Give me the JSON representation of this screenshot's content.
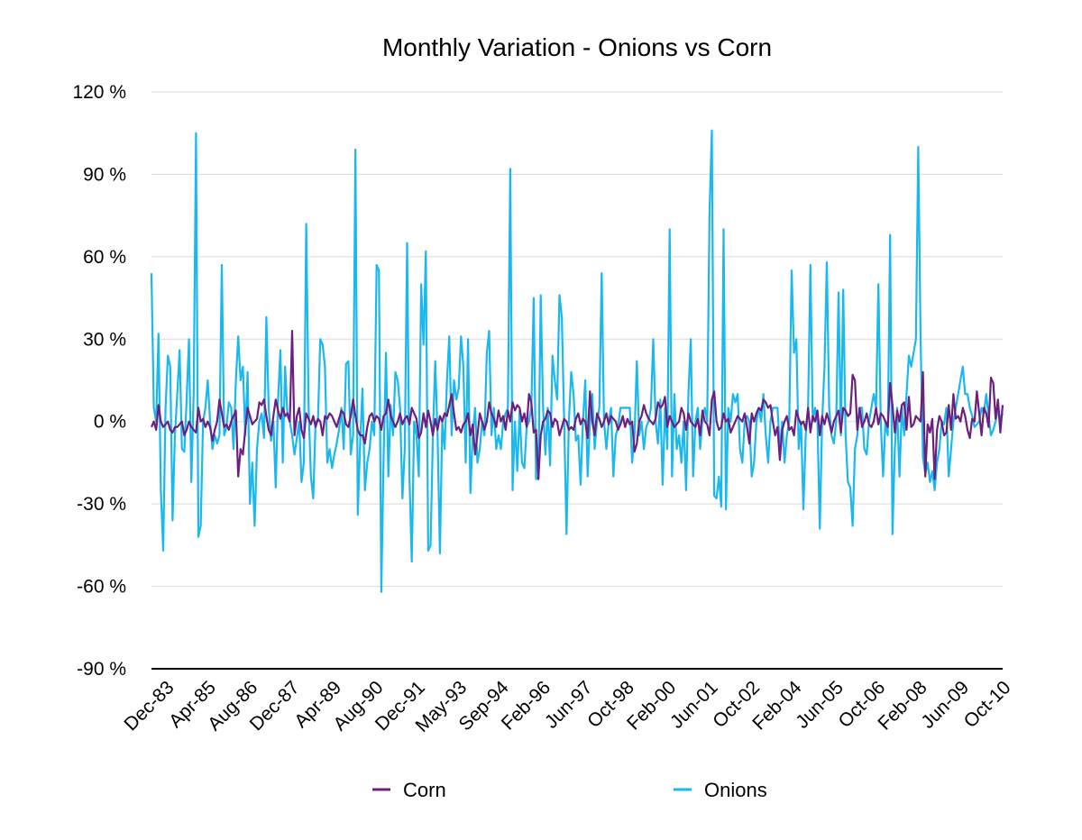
{
  "chart_data": {
    "type": "line",
    "title": "Monthly Variation - Onions vs Corn",
    "xlabel": "",
    "ylabel": "",
    "ylim": [
      -90,
      120
    ],
    "ytick_step": 30,
    "y_tick_labels": [
      "120 %",
      "90 %",
      "60 %",
      "30 %",
      "0 %",
      "-30 %",
      "-60 %",
      "-90 %"
    ],
    "x_tick_labels": [
      "Dec-83",
      "Apr-85",
      "Aug-86",
      "Dec-87",
      "Apr-89",
      "Aug-90",
      "Dec-91",
      "May-93",
      "Sep-94",
      "Feb-96",
      "Jun-97",
      "Oct-98",
      "Feb-00",
      "Jun-01",
      "Oct-02",
      "Feb-04",
      "Jun-05",
      "Oct-06",
      "Feb-08",
      "Jun-09",
      "Oct-10"
    ],
    "grid": true,
    "legend_position": "bottom",
    "series": [
      {
        "name": "Corn",
        "color": "#6b1f7f",
        "values": [
          -2,
          0,
          -3,
          6,
          0,
          -2,
          -1,
          0,
          -3,
          -4,
          -2,
          -2,
          -1,
          0,
          -5,
          -3,
          0,
          -2,
          -3,
          -4,
          5,
          0,
          1,
          -2,
          0,
          -2,
          -7,
          -3,
          0,
          8,
          3,
          -2,
          -1,
          -3,
          0,
          2,
          4,
          -20,
          -10,
          -12,
          -3,
          5,
          2,
          -1,
          0,
          1,
          7,
          6,
          8,
          2,
          -3,
          -5,
          2,
          8,
          4,
          1,
          5,
          2,
          3,
          0,
          33,
          -5,
          2,
          5,
          -3,
          -6,
          3,
          1,
          -1,
          2,
          -2,
          1,
          0,
          -5,
          2,
          1,
          3,
          2,
          0,
          -2,
          1,
          4,
          3,
          -1,
          -2,
          2,
          8,
          2,
          -3,
          -5,
          -5,
          -8,
          -2,
          2,
          3,
          0,
          2,
          1,
          -3,
          2,
          3,
          8,
          2,
          0,
          -2,
          0,
          3,
          -1,
          1,
          2,
          -1,
          5,
          3,
          1,
          -6,
          -4,
          3,
          -2,
          4,
          0,
          -5,
          1,
          -3,
          2,
          0,
          3,
          2,
          6,
          10,
          3,
          -3,
          -2,
          -4,
          -1,
          0,
          3,
          -5,
          -1,
          -12,
          -5,
          3,
          0,
          -3,
          0,
          7,
          3,
          1,
          -2,
          4,
          0,
          2,
          -3,
          4,
          0,
          7,
          4,
          6,
          5,
          0,
          3,
          -2,
          10,
          7,
          -4,
          -3,
          -21,
          -5,
          0,
          1,
          4,
          3,
          -2,
          1,
          0,
          -5,
          -2,
          1,
          0,
          -3,
          -2,
          -3,
          1,
          3,
          -1,
          1,
          0,
          -6,
          11,
          0,
          -5,
          3,
          1,
          -2,
          0,
          3,
          -1,
          2,
          1,
          0,
          -3,
          -1,
          2,
          -2,
          1,
          -1,
          0,
          -11,
          -8,
          0,
          2,
          6,
          3,
          1,
          0,
          -1,
          1,
          7,
          5,
          6,
          9,
          -2,
          2,
          0,
          -2,
          -1,
          0,
          5,
          3,
          -3,
          3,
          0,
          -1,
          -2,
          1,
          -5,
          4,
          0,
          -1,
          -5,
          8,
          11,
          0,
          -3,
          -2,
          3,
          0,
          1,
          -4,
          -2,
          0,
          2,
          1,
          0,
          3,
          -2,
          -8,
          3,
          0,
          3,
          5,
          4,
          8,
          7,
          5,
          6,
          0,
          -5,
          -2,
          -14,
          -3,
          0,
          2,
          -3,
          -2,
          -5,
          4,
          1,
          -1,
          0,
          -3,
          5,
          -4,
          2,
          0,
          4,
          -5,
          2,
          -1,
          3,
          0,
          -4,
          0,
          2,
          4,
          -4,
          5,
          4,
          2,
          3,
          17,
          15,
          -3,
          5,
          -2,
          0,
          3,
          -1,
          -2,
          0,
          5,
          -1,
          3,
          2,
          0,
          -2,
          14,
          6,
          -4,
          4,
          0,
          6,
          7,
          -3,
          9,
          -2,
          -1,
          2,
          1,
          0,
          18,
          -20,
          -1,
          -4,
          1,
          -21,
          -3,
          2,
          0,
          -5,
          -4,
          6,
          -3,
          10,
          1,
          2,
          0,
          5,
          2,
          -3,
          -6,
          1,
          0,
          11,
          3,
          -5,
          5,
          3,
          -2,
          16,
          14,
          1,
          8,
          -4,
          6
        ]
      },
      {
        "name": "Onions",
        "color": "#19b8ef",
        "values": [
          54,
          5,
          0,
          32,
          -25,
          -47,
          5,
          24,
          20,
          -36,
          -5,
          10,
          26,
          -10,
          -11,
          8,
          30,
          -22,
          10,
          105,
          -42,
          -38,
          0,
          5,
          15,
          0,
          -10,
          -5,
          -8,
          -5,
          57,
          -5,
          -2,
          7,
          5,
          -10,
          15,
          31,
          15,
          20,
          -5,
          18,
          -30,
          -15,
          -38,
          -10,
          0,
          3,
          -6,
          38,
          5,
          -7,
          0,
          -24,
          8,
          26,
          -15,
          20,
          2,
          0,
          -5,
          -12,
          -6,
          0,
          -22,
          -15,
          72,
          6,
          -20,
          -28,
          0,
          0,
          30,
          28,
          20,
          -15,
          -10,
          -17,
          -12,
          -8,
          -3,
          5,
          -10,
          21,
          22,
          -12,
          -5,
          99,
          -34,
          -8,
          12,
          -25,
          -15,
          -10,
          0,
          -5,
          57,
          55,
          -62,
          -12,
          25,
          -20,
          6,
          -5,
          18,
          15,
          5,
          -28,
          -10,
          65,
          -20,
          -51,
          0,
          -5,
          -20,
          50,
          28,
          62,
          -47,
          -45,
          -5,
          22,
          -5,
          -48,
          0,
          -10,
          15,
          31,
          -5,
          15,
          8,
          12,
          31,
          20,
          -15,
          30,
          -26,
          -5,
          5,
          -15,
          -10,
          0,
          -5,
          25,
          33,
          -5,
          5,
          -10,
          -5,
          -10,
          0,
          3,
          5,
          92,
          -25,
          0,
          -18,
          4,
          -15,
          -17,
          -2,
          0,
          5,
          45,
          -21,
          -20,
          46,
          5,
          -12,
          5,
          -16,
          24,
          15,
          8,
          46,
          38,
          0,
          -41,
          0,
          18,
          10,
          -7,
          -5,
          -23,
          0,
          15,
          -20,
          0,
          10,
          -10,
          0,
          5,
          54,
          0,
          -10,
          0,
          5,
          -20,
          -5,
          -2,
          5,
          5,
          5,
          5,
          5,
          -15,
          -5,
          22,
          -5,
          0,
          -10,
          -2,
          0,
          5,
          30,
          0,
          -8,
          8,
          -23,
          5,
          -10,
          70,
          -20,
          10,
          -10,
          -5,
          -15,
          0,
          -25,
          10,
          30,
          -20,
          0,
          5,
          -10,
          1,
          5,
          0,
          76,
          106,
          -27,
          -28,
          -20,
          -31,
          70,
          -32,
          5,
          0,
          10,
          7,
          10,
          -10,
          -15,
          0,
          2,
          0,
          -20,
          -15,
          0,
          5,
          0,
          10,
          -5,
          -15,
          0,
          5,
          5,
          5,
          -10,
          0,
          -15,
          -5,
          0,
          55,
          25,
          30,
          -10,
          0,
          -32,
          -5,
          5,
          57,
          0,
          5,
          0,
          -39,
          0,
          20,
          58,
          5,
          -5,
          -8,
          0,
          47,
          -5,
          48,
          -5,
          -22,
          -24,
          -38,
          -10,
          -5,
          5,
          5,
          -10,
          -12,
          0,
          5,
          10,
          5,
          50,
          0,
          -20,
          0,
          -5,
          68,
          -41,
          -10,
          5,
          -20,
          5,
          -5,
          10,
          24,
          20,
          25,
          30,
          100,
          30,
          -13,
          -19,
          -15,
          -22,
          -18,
          -25,
          -15,
          -10,
          0,
          -1,
          5,
          -20,
          -10,
          0,
          5,
          10,
          15,
          20,
          10,
          10,
          5,
          2,
          -2,
          -1,
          0,
          5,
          3,
          10,
          2,
          -5,
          -3,
          0,
          5,
          1,
          3
        ]
      }
    ]
  },
  "legend": {
    "items": [
      {
        "label": "Corn",
        "color": "#6b1f7f"
      },
      {
        "label": "Onions",
        "color": "#19b8ef"
      }
    ]
  }
}
